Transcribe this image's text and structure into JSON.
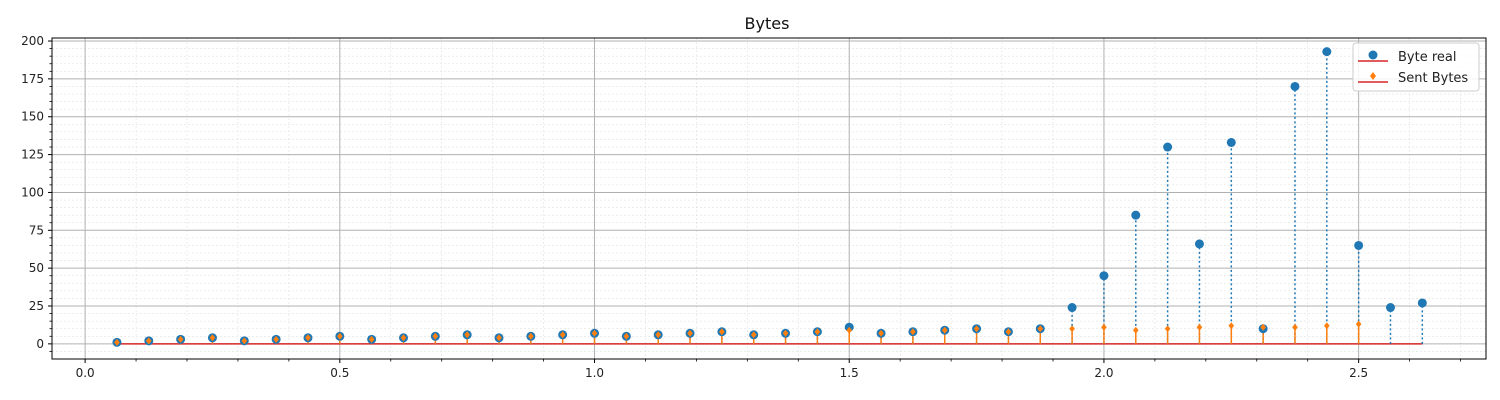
{
  "chart_data": {
    "type": "stem",
    "title": "Bytes",
    "xlabel": "",
    "ylabel": "",
    "xlim": [
      -0.065,
      2.75
    ],
    "ylim": [
      -10,
      202
    ],
    "x_ticks": [
      0.0,
      0.5,
      1.0,
      1.5,
      2.0,
      2.5
    ],
    "x_tick_labels": [
      "0.0",
      "0.5",
      "1.0",
      "1.5",
      "2.0",
      "2.5"
    ],
    "y_ticks": [
      0,
      25,
      50,
      75,
      100,
      125,
      150,
      175,
      200
    ],
    "y_tick_labels": [
      "0",
      "25",
      "50",
      "75",
      "100",
      "125",
      "150",
      "175",
      "200"
    ],
    "grid": {
      "major": true,
      "minor": true
    },
    "legend_position": "top-right",
    "baseline": 0,
    "colors": {
      "byte_real": "#1f77b4",
      "sent_bytes": "#ff7f0e",
      "baseline": "#d62728"
    },
    "x": [
      0.0625,
      0.125,
      0.1875,
      0.25,
      0.3125,
      0.375,
      0.4375,
      0.5,
      0.5625,
      0.625,
      0.6875,
      0.75,
      0.8125,
      0.875,
      0.9375,
      1.0,
      1.0625,
      1.125,
      1.1875,
      1.25,
      1.3125,
      1.375,
      1.4375,
      1.5,
      1.5625,
      1.625,
      1.6875,
      1.75,
      1.8125,
      1.875,
      1.9375,
      2.0,
      2.0625,
      2.125,
      2.1875,
      2.25,
      2.3125,
      2.375,
      2.4375,
      2.5,
      2.5625,
      2.625
    ],
    "series": [
      {
        "name": "Byte real",
        "marker": "circle",
        "line_style": "dotted",
        "values": [
          1,
          2,
          3,
          4,
          2,
          3,
          4,
          5,
          3,
          4,
          5,
          6,
          4,
          5,
          6,
          7,
          5,
          6,
          7,
          8,
          6,
          7,
          8,
          11,
          7,
          8,
          9,
          10,
          8,
          10,
          24,
          45,
          85,
          130,
          66,
          133,
          10,
          170,
          193,
          65,
          24,
          27
        ]
      },
      {
        "name": "Sent Bytes",
        "marker": "diamond",
        "line_style": "solid",
        "values": [
          1,
          2,
          3,
          4,
          2,
          3,
          4,
          5,
          3,
          4,
          5,
          6,
          4,
          5,
          6,
          7,
          5,
          6,
          7,
          8,
          6,
          7,
          8,
          9,
          7,
          8,
          9,
          10,
          8,
          10,
          10,
          11,
          9,
          10,
          11,
          12,
          11,
          11,
          12,
          13,
          null,
          null
        ]
      }
    ]
  }
}
